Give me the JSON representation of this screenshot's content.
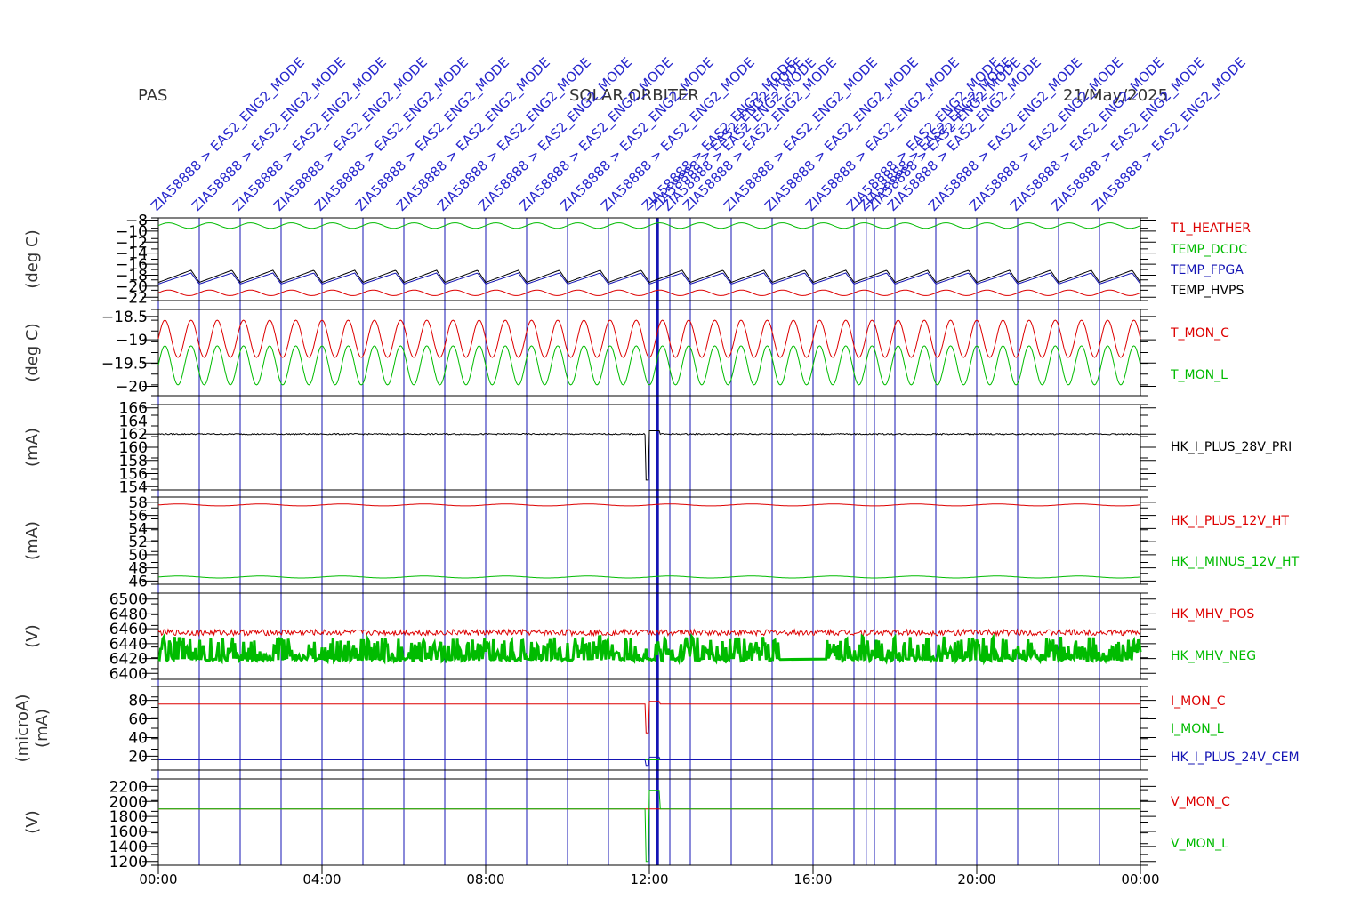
{
  "header": {
    "left": "PAS",
    "center": "SOLAR ORBITER",
    "right": "21/May/2025"
  },
  "colors": {
    "red": "#dd0000",
    "green": "#00bb00",
    "blue": "#1414b4",
    "black": "#000000",
    "annotation": "#2626cc",
    "frame": "#000000"
  },
  "chart_data": {
    "type": "line",
    "x_range": [
      "00:00",
      "24:00"
    ],
    "x_ticks": [
      "00:00",
      "04:00",
      "08:00",
      "12:00",
      "16:00",
      "20:00",
      "00:00"
    ],
    "mode_annotations": {
      "label": "ZIA58888 > EAS2_ENG2_MODE",
      "times_hours": [
        0,
        1,
        2,
        3,
        4,
        5,
        6,
        7,
        8,
        9,
        10,
        11,
        12,
        12.2,
        12.5,
        13,
        14,
        15,
        16,
        17,
        17.3,
        17.5,
        18,
        19,
        20,
        21,
        22,
        23
      ]
    },
    "panels": [
      {
        "ylabel": "(deg C)",
        "yticks": [
          -8,
          -10,
          -12,
          -14,
          -16,
          -18,
          -20,
          -22
        ],
        "ylim": [
          -22.6,
          -7.6
        ],
        "series": [
          {
            "name": "T1_HEATHER",
            "color": "red",
            "base": -21.2,
            "amp": 0.5,
            "period_h": 1.0,
            "wave": "sin"
          },
          {
            "name": "TEMP_DCDC",
            "color": "green",
            "base": -9.0,
            "amp": 0.5,
            "period_h": 1.0,
            "wave": "sin"
          },
          {
            "name": "TEMP_FPGA",
            "color": "blue",
            "base": -18.6,
            "amp": 1.0,
            "period_h": 1.0,
            "wave": "saw"
          },
          {
            "name": "TEMP_HVPS",
            "color": "black",
            "base": -18.2,
            "amp": 1.1,
            "period_h": 1.0,
            "wave": "saw"
          }
        ]
      },
      {
        "ylabel": "(deg C)",
        "yticks": [
          -18.5,
          -19.0,
          -19.5,
          -20.0
        ],
        "ylim": [
          -20.2,
          -18.35
        ],
        "series": [
          {
            "name": "T_MON_C",
            "color": "red",
            "base": -18.98,
            "amp": 0.4,
            "period_h": 0.64,
            "wave": "sin"
          },
          {
            "name": "T_MON_L",
            "color": "green",
            "base": -19.55,
            "amp": 0.42,
            "period_h": 0.64,
            "wave": "sin"
          }
        ]
      },
      {
        "ylabel": "(mA)",
        "yticks": [
          166,
          164,
          162,
          160,
          158,
          156,
          154
        ],
        "ylim": [
          153.5,
          166.5
        ],
        "series": [
          {
            "name": "HK_I_PLUS_28V_PRI",
            "color": "black",
            "base": 162.0,
            "amp": 0.1,
            "period_h": 0.3,
            "wave": "noise",
            "dip": [
              155.0,
              162.5
            ]
          }
        ]
      },
      {
        "ylabel": "(mA)",
        "yticks": [
          58,
          56,
          54,
          52,
          50,
          48,
          46
        ],
        "ylim": [
          45.5,
          58.8
        ],
        "series": [
          {
            "name": "HK_I_PLUS_12V_HT",
            "color": "red",
            "base": 57.6,
            "amp": 0.15,
            "period_h": 2.0,
            "wave": "sin"
          },
          {
            "name": "HK_I_MINUS_12V_HT",
            "color": "green",
            "base": 46.6,
            "amp": 0.15,
            "period_h": 2.0,
            "wave": "sin"
          }
        ]
      },
      {
        "ylabel": "(V)",
        "yticks": [
          6500,
          6480,
          6460,
          6440,
          6420,
          6400
        ],
        "ylim": [
          6392,
          6508
        ],
        "series": [
          {
            "name": "HK_MHV_POS",
            "color": "red",
            "base": 6455,
            "amp": 4,
            "period_h": 0.05,
            "wave": "noise"
          },
          {
            "name": "HK_MHV_NEG",
            "color": "green",
            "base": 6420,
            "amp": 30,
            "period_h": 0.05,
            "wave": "burst"
          }
        ]
      },
      {
        "ylabel": "(microA)\n(mA)",
        "yticks": [
          80,
          60,
          40,
          20
        ],
        "ylim": [
          5,
          95
        ],
        "series": [
          {
            "name": "I_MON_C",
            "color": "red",
            "base": 76,
            "amp": 0.2,
            "period_h": 1.0,
            "wave": "flat",
            "dip": [
              45,
              79
            ]
          },
          {
            "name": "I_MON_L",
            "color": "green",
            "base": 16,
            "amp": 0.2,
            "period_h": 1.0,
            "wave": "flat"
          },
          {
            "name": "HK_I_PLUS_24V_CEM",
            "color": "blue",
            "base": 16,
            "amp": 0.2,
            "period_h": 1.0,
            "wave": "flat",
            "dip": [
              10,
              19
            ]
          }
        ]
      },
      {
        "ylabel": "(V)",
        "yticks": [
          2200,
          2000,
          1800,
          1600,
          1400,
          1200
        ],
        "ylim": [
          1150,
          2300
        ],
        "series": [
          {
            "name": "V_MON_C",
            "color": "red",
            "base": 1900,
            "amp": 0,
            "period_h": 1.0,
            "wave": "flat"
          },
          {
            "name": "V_MON_L",
            "color": "green",
            "base": 1900,
            "amp": 0,
            "period_h": 1.0,
            "wave": "flat",
            "dip": [
              1200,
              2150
            ]
          }
        ]
      }
    ]
  }
}
